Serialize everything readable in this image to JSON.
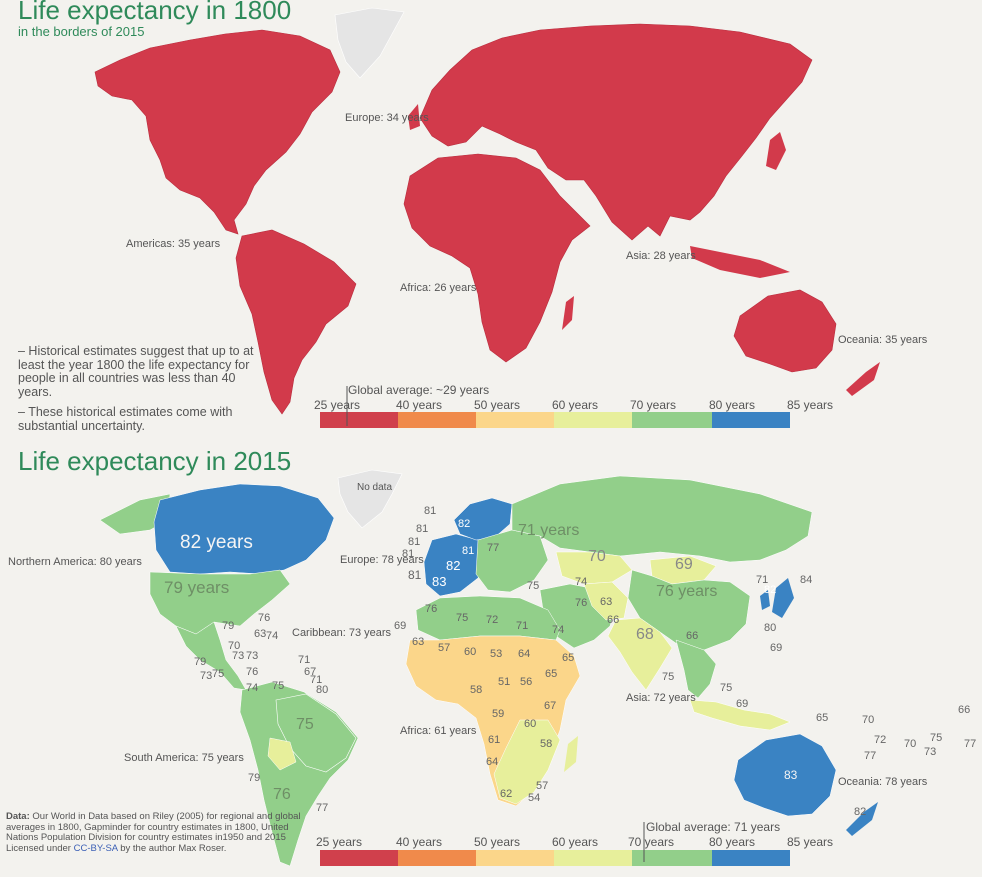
{
  "top": {
    "title": "Life expectancy in 1800",
    "subtitle": "in the borders of 2015",
    "regions": {
      "europe": "Europe: 34 years",
      "americas": "Americas: 35 years",
      "asia": "Asia: 28 years",
      "africa": "Africa: 26 years",
      "oceania": "Oceania: 35 years"
    },
    "notes": [
      "– Historical estimates suggest that up to at least the year 1800 the life expectancy for people in all countries was less than 40 years.",
      "– These historical estimates come with substantial uncertainty."
    ],
    "global_average": "Global average: ~29 years"
  },
  "bottom": {
    "title": "Life expectancy in 2015",
    "no_data": "No data",
    "regions": {
      "northern_america": "Northern America: 80 years",
      "europe": "Europe: 78 years",
      "caribbean": "Caribbean: 73 years",
      "asia": "Asia: 72 years",
      "africa": "Africa: 61 years",
      "south_america": "South America: 75 years",
      "oceania": "Oceania: 78 years"
    },
    "big_labels": {
      "canada": "82 years",
      "usa": "79 years",
      "russia": "71 years",
      "china": "76 years",
      "kazakhstan": "70",
      "mongolia": "69",
      "india": "68",
      "brazil": "75",
      "argentina": "76",
      "australia": "83"
    },
    "global_average": "Global average: 71 years"
  },
  "legend": {
    "ticks": [
      "25 years",
      "40 years",
      "50 years",
      "60 years",
      "70 years",
      "80 years",
      "85 years"
    ],
    "colors": [
      "#d0404c",
      "#f08a4b",
      "#fbd68a",
      "#e7ef9b",
      "#92cf8a",
      "#3a83c3"
    ]
  },
  "source": {
    "label": "Data:",
    "text": "Our World in Data based on Riley (2005) for regional and global averages in 1800, Gapminder for country estimates in 1800, United Nations Population Division for country estimates in1950 and 2015",
    "license_prefix": "Licensed under",
    "license_link": "CC-BY-SA",
    "license_suffix": "by the author Max Roser."
  },
  "map_values": [
    "81",
    "81",
    "81",
    "81",
    "81",
    "82",
    "83",
    "81",
    "82",
    "77",
    "75",
    "74",
    "76",
    "72",
    "71",
    "74",
    "75",
    "63",
    "57",
    "60",
    "53",
    "64",
    "65",
    "51",
    "56",
    "58",
    "59",
    "60",
    "58",
    "61",
    "64",
    "62",
    "57",
    "54",
    "67",
    "65",
    "63",
    "76",
    "66",
    "71",
    "82",
    "84",
    "80",
    "69",
    "75",
    "69",
    "75",
    "66",
    "65",
    "70",
    "72",
    "70",
    "75",
    "77",
    "73",
    "77",
    "66",
    "76",
    "63",
    "74",
    "73",
    "71",
    "67",
    "71",
    "80",
    "79",
    "70",
    "76",
    "73",
    "75",
    "79",
    "74",
    "75",
    "73",
    "69",
    "79",
    "77",
    "82"
  ]
}
